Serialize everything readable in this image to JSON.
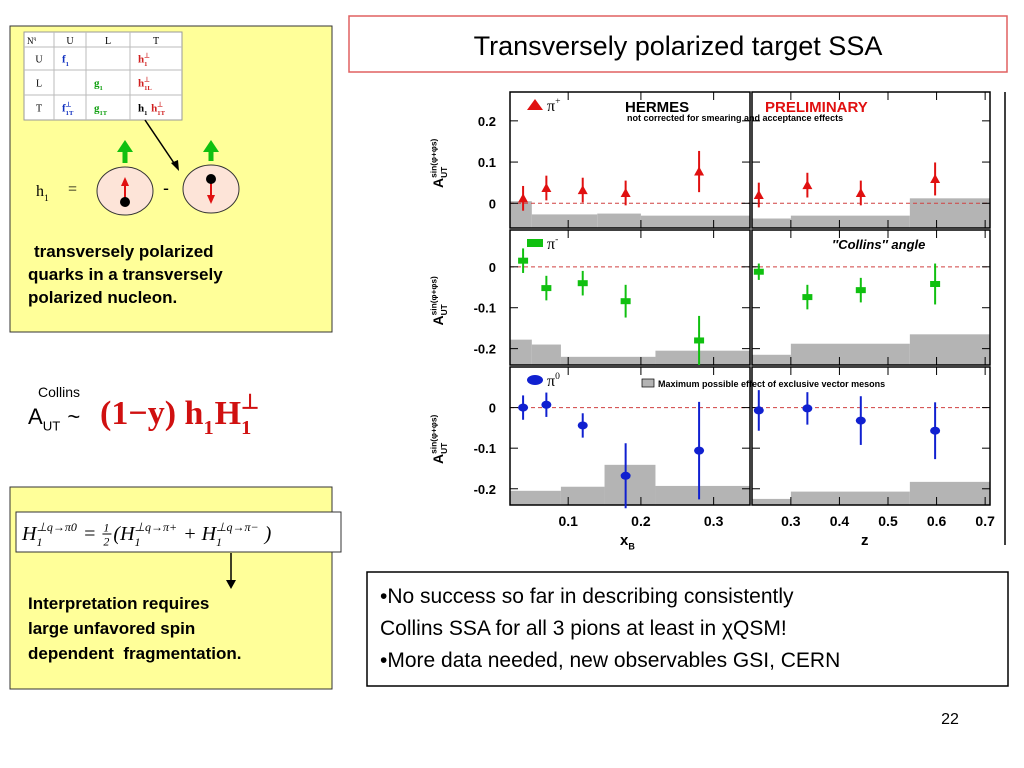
{
  "title": "Transversely polarized target SSA",
  "table": {
    "corner": [
      {
        "b": "N",
        "sup": "q"
      }
    ],
    "columns": [
      "U",
      "L",
      "T"
    ],
    "rows": [
      {
        "label": "U",
        "cells": [
          [
            {
              "b": "f",
              "sub": "1",
              "color": "#1030c0"
            }
          ],
          [],
          [
            {
              "b": "h",
              "sub": "1",
              "sup": "⊥",
              "color": "#d02020"
            }
          ]
        ]
      },
      {
        "label": "L",
        "cells": [
          [],
          [
            {
              "b": "g",
              "sub": "1",
              "color": "#10a010"
            }
          ],
          [
            {
              "b": "h",
              "sub": "1L",
              "sup": "⊥",
              "color": "#d02020"
            }
          ]
        ]
      },
      {
        "label": "T",
        "cells": [
          [
            {
              "b": "f",
              "sub": "1T",
              "sup": "⊥",
              "color": "#1030c0"
            }
          ],
          [
            {
              "b": "g",
              "sub": "1T",
              "color": "#10a010"
            }
          ],
          [
            {
              "b": "h",
              "sub": "1",
              "color": "#000000"
            },
            {
              "b": " h",
              "sub": "1T",
              "sup": "⊥",
              "color": "#d02020"
            }
          ]
        ]
      }
    ]
  },
  "diagram": {
    "lhs": [
      {
        "b": "h",
        "sub": "1"
      }
    ],
    "equals": "=",
    "minus": "-"
  },
  "box1_text": [
    "transversely polarized",
    "quarks in a transversely",
    "polarized nucleon."
  ],
  "a_ut": {
    "sup": "Collins",
    "tokens": [
      {
        "b": "A",
        "sub": "UT"
      },
      {
        "b": " ~"
      }
    ]
  },
  "expression": [
    {
      "b": "(1−y) "
    },
    {
      "b": "h",
      "sub": "1"
    },
    {
      "b": "H",
      "sub": "1",
      "sup": "⊥"
    }
  ],
  "formula": [
    {
      "b": "H",
      "sub": "1",
      "sup": "⊥q→π0"
    },
    {
      "b": " = "
    },
    {
      "num": "1",
      "den": "2"
    },
    {
      "b": "(H",
      "sub": "1",
      "sup": "⊥q→π+"
    },
    {
      "b": " + H",
      "sub": "1",
      "sup": "⊥q→π−"
    },
    {
      "b": " )"
    }
  ],
  "box2_text": [
    "Interpretation requires",
    "large unfavored spin",
    "dependent  fragmentation."
  ],
  "notes": [
    "•No success so far in describing consistently",
    "Collins SSA for all 3 pions at least in χQSM!",
    "•More data needed, new observables GSI, CERN"
  ],
  "page_number": "22",
  "chart_data": [
    {
      "type": "scatter",
      "legend": [
        {
          "b": "π",
          "sup": "+"
        }
      ],
      "marker": "triangle",
      "color": "#e01010",
      "experiment": "HERMES",
      "caveat": "not corrected for smearing and acceptance effects",
      "ylabel": [
        {
          "b": "A",
          "sub": "UT",
          "sup": "sin(φ+φs)"
        }
      ],
      "x": [
        0.038,
        0.07,
        0.12,
        0.179,
        0.28
      ],
      "values": [
        0.012,
        0.037,
        0.032,
        0.025,
        0.077
      ],
      "errors": [
        0.03,
        0.03,
        0.03,
        0.03,
        0.05
      ],
      "band_bins": [
        0.02,
        0.05,
        0.14,
        0.2,
        0.35
      ],
      "band_values": [
        0.005,
        -0.027,
        -0.025,
        -0.03
      ],
      "band_color": "#b4b4b4",
      "xlim": [
        0.02,
        0.35
      ],
      "xticks": [
        0.1,
        0.2,
        0.3
      ],
      "ylim": [
        -0.06,
        0.27
      ],
      "yticks": [
        0,
        0.1,
        0.2
      ]
    },
    {
      "type": "scatter",
      "marker": "triangle",
      "color": "#e01010",
      "status": "PRELIMINARY",
      "x": [
        0.234,
        0.334,
        0.444,
        0.597
      ],
      "values": [
        0.02,
        0.044,
        0.025,
        0.059
      ],
      "errors": [
        0.03,
        0.03,
        0.03,
        0.04
      ],
      "band_bins": [
        0.22,
        0.3,
        0.545,
        0.71
      ],
      "band_values": [
        -0.037,
        -0.03,
        0.012
      ],
      "band_color": "#b4b4b4",
      "xlim": [
        0.22,
        0.71
      ],
      "xticks": [
        0.3,
        0.4,
        0.5,
        0.6,
        0.7
      ],
      "ylim": [
        -0.06,
        0.27
      ],
      "yticks": [
        0,
        0.1,
        0.2
      ]
    },
    {
      "type": "scatter",
      "legend": [
        {
          "b": "π",
          "sup": "-"
        }
      ],
      "marker": "square",
      "color": "#10c010",
      "ylabel": [
        {
          "b": "A",
          "sub": "UT",
          "sup": "sin(φ+φs)"
        }
      ],
      "x": [
        0.038,
        0.07,
        0.12,
        0.179,
        0.28
      ],
      "values": [
        0.015,
        -0.052,
        -0.04,
        -0.084,
        -0.18
      ],
      "errors": [
        0.03,
        0.03,
        0.03,
        0.04,
        0.06
      ],
      "band_bins": [
        0.02,
        0.05,
        0.09,
        0.22,
        0.35
      ],
      "band_values": [
        -0.178,
        -0.19,
        -0.22,
        -0.205
      ],
      "band_color": "#b4b4b4",
      "xlim": [
        0.02,
        0.35
      ],
      "xticks": [
        0.1,
        0.2,
        0.3
      ],
      "ylim": [
        -0.24,
        0.09
      ],
      "yticks": [
        0,
        -0.1,
        -0.2
      ]
    },
    {
      "type": "scatter",
      "marker": "square",
      "color": "#10c010",
      "angle_label": "″Collins″ angle",
      "x": [
        0.234,
        0.334,
        0.444,
        0.597
      ],
      "values": [
        -0.012,
        -0.074,
        -0.057,
        -0.042
      ],
      "errors": [
        0.02,
        0.03,
        0.03,
        0.05
      ],
      "band_bins": [
        0.22,
        0.3,
        0.545,
        0.71
      ],
      "band_values": [
        -0.215,
        -0.188,
        -0.165
      ],
      "band_color": "#b4b4b4",
      "xlim": [
        0.22,
        0.71
      ],
      "xticks": [
        0.3,
        0.4,
        0.5,
        0.6,
        0.7
      ],
      "ylim": [
        -0.24,
        0.09
      ],
      "yticks": [
        0,
        -0.1,
        -0.2
      ]
    },
    {
      "type": "scatter",
      "legend": [
        {
          "b": "π",
          "sup": "0"
        }
      ],
      "marker": "circle",
      "color": "#1020d0",
      "band_label": "Maximum possible effect of exclusive vector mesons",
      "ylabel": [
        {
          "b": "A",
          "sub": "UT",
          "sup": "sin(φ+φs)"
        }
      ],
      "xlabel": [
        {
          "b": "x",
          "sub": "B"
        }
      ],
      "x": [
        0.038,
        0.07,
        0.12,
        0.179,
        0.28
      ],
      "values": [
        0,
        0.007,
        -0.044,
        -0.168,
        -0.106
      ],
      "errors": [
        0.03,
        0.03,
        0.03,
        0.08,
        0.12
      ],
      "band_bins": [
        0.02,
        0.09,
        0.15,
        0.22,
        0.35
      ],
      "band_values": [
        -0.205,
        -0.195,
        -0.141,
        -0.193
      ],
      "band_color": "#b4b4b4",
      "xlim": [
        0.02,
        0.35
      ],
      "xticks": [
        0.1,
        0.2,
        0.3
      ],
      "ylim": [
        -0.24,
        0.1
      ],
      "yticks": [
        0,
        -0.1,
        -0.2
      ]
    },
    {
      "type": "scatter",
      "marker": "circle",
      "color": "#1020d0",
      "xlabel": [
        {
          "b": "z"
        }
      ],
      "x": [
        0.234,
        0.334,
        0.444,
        0.597
      ],
      "values": [
        -0.007,
        -0.002,
        -0.032,
        -0.057
      ],
      "errors": [
        0.05,
        0.04,
        0.06,
        0.07
      ],
      "band_bins": [
        0.22,
        0.3,
        0.545,
        0.71
      ],
      "band_values": [
        -0.225,
        -0.207,
        -0.183
      ],
      "band_color": "#b4b4b4",
      "xlim": [
        0.22,
        0.71
      ],
      "xticks": [
        0.3,
        0.4,
        0.5,
        0.6,
        0.7
      ],
      "ylim": [
        -0.24,
        0.1
      ],
      "yticks": [
        0,
        -0.1,
        -0.2
      ]
    }
  ]
}
